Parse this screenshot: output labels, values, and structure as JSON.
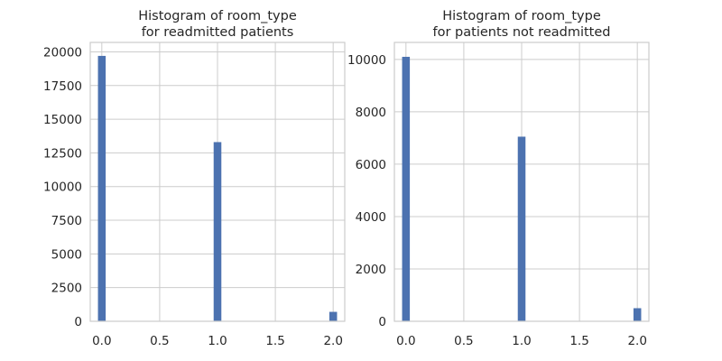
{
  "chart_data": [
    {
      "type": "bar",
      "title_lines": [
        "Histogram of room_type",
        "for readmitted patients"
      ],
      "xlabel": "",
      "ylabel": "",
      "xlim": [
        -0.1,
        2.1
      ],
      "ylim": [
        0,
        20700
      ],
      "xticks": [
        0.0,
        0.5,
        1.0,
        1.5,
        2.0
      ],
      "xtick_labels": [
        "0.0",
        "0.5",
        "1.0",
        "1.5",
        "2.0"
      ],
      "yticks": [
        0,
        2500,
        5000,
        7500,
        10000,
        12500,
        15000,
        17500,
        20000
      ],
      "ytick_labels": [
        "0",
        "2500",
        "5000",
        "7500",
        "10000",
        "12500",
        "15000",
        "17500",
        "20000"
      ],
      "bin_width": 0.0667,
      "bars": [
        {
          "x": 0.0,
          "value": 19700
        },
        {
          "x": 1.0,
          "value": 13300
        },
        {
          "x": 2.0,
          "value": 700
        }
      ],
      "grid": true,
      "color": "#4c72b0"
    },
    {
      "type": "bar",
      "title_lines": [
        "Histogram of room_type",
        "for patients not readmitted"
      ],
      "xlabel": "",
      "ylabel": "",
      "xlim": [
        -0.1,
        2.1
      ],
      "ylim": [
        0,
        10650
      ],
      "xticks": [
        0.0,
        0.5,
        1.0,
        1.5,
        2.0
      ],
      "xtick_labels": [
        "0.0",
        "0.5",
        "1.0",
        "1.5",
        "2.0"
      ],
      "yticks": [
        0,
        2000,
        4000,
        6000,
        8000,
        10000
      ],
      "ytick_labels": [
        "0",
        "2000",
        "4000",
        "6000",
        "8000",
        "10000"
      ],
      "bin_width": 0.0667,
      "bars": [
        {
          "x": 0.0,
          "value": 10100
        },
        {
          "x": 1.0,
          "value": 7050
        },
        {
          "x": 2.0,
          "value": 500
        }
      ],
      "grid": true,
      "color": "#4c72b0"
    }
  ]
}
